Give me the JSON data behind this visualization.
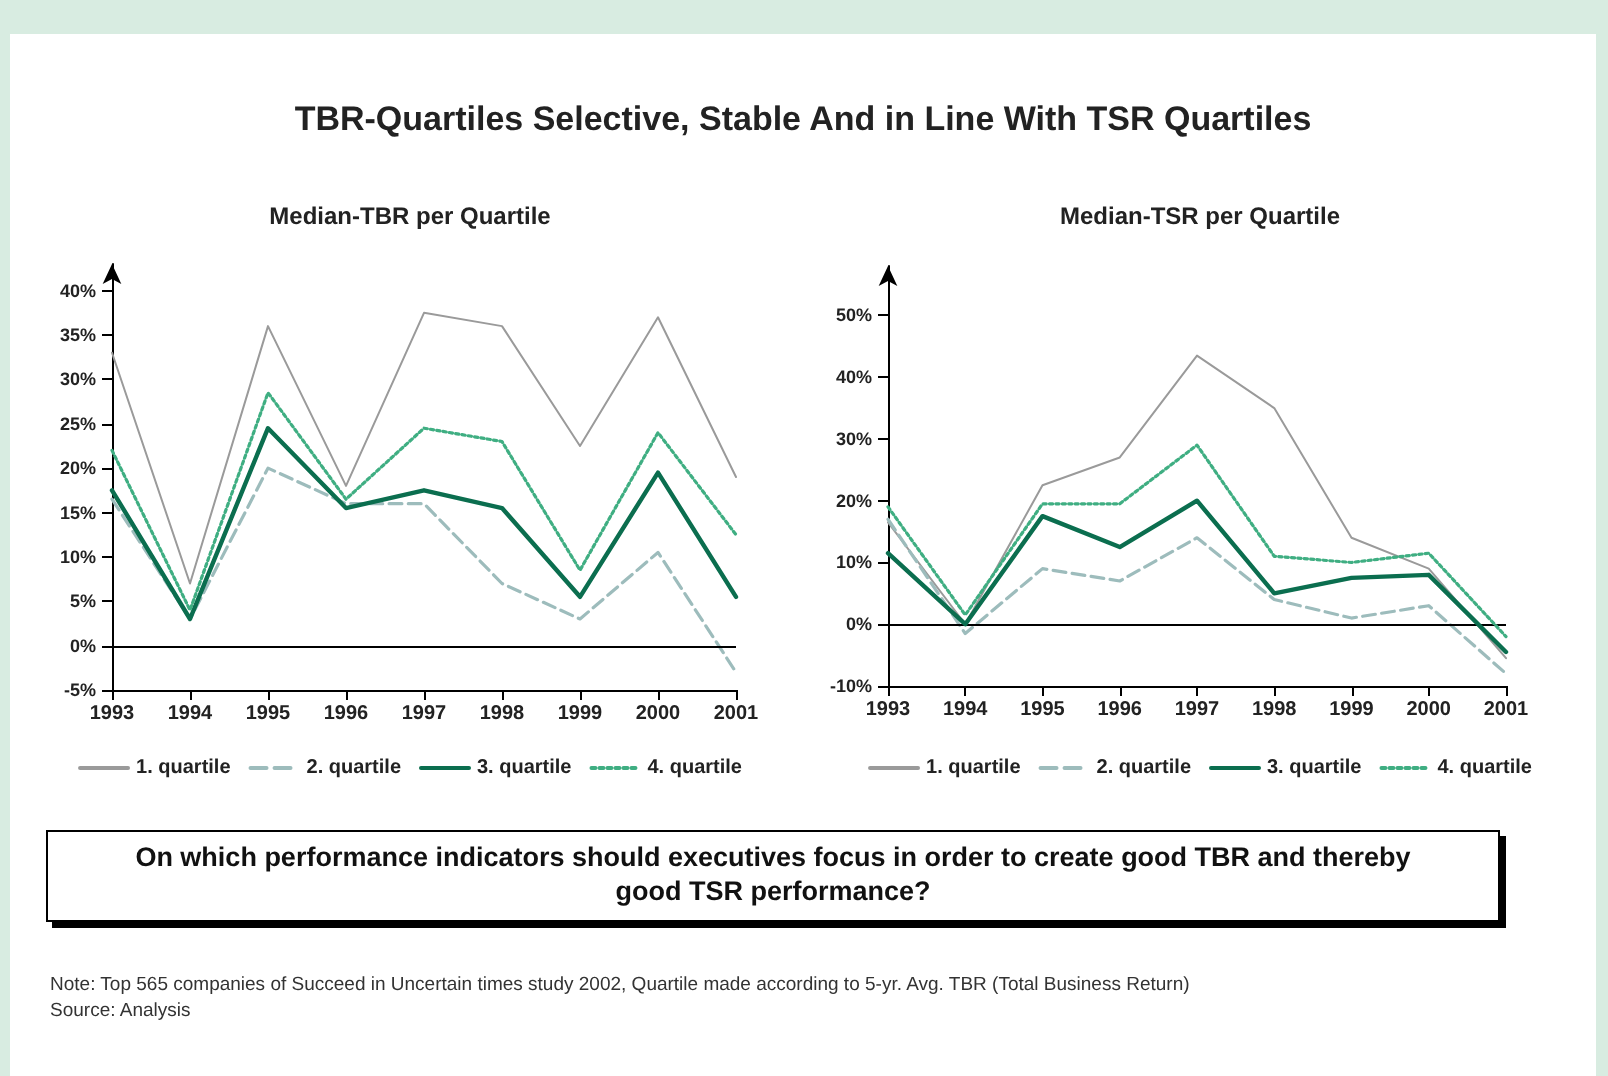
{
  "chart_data": [
    {
      "type": "other",
      "title": "TBR-Quartiles Selective, Stable And in Line With TSR Quartiles"
    },
    {
      "type": "line",
      "title": "Median-TBR per Quartile",
      "categories": [
        "1993",
        "1994",
        "1995",
        "1996",
        "1997",
        "1998",
        "1999",
        "2000",
        "2001"
      ],
      "series": [
        {
          "name": "1. quartile",
          "color": "#9a9a9a",
          "line_style": "solid",
          "values": [
            33,
            7,
            36,
            18,
            37.5,
            36,
            22.5,
            37,
            19
          ]
        },
        {
          "name": "2. quartile",
          "color": "#9dbcbc",
          "line_style": "dashed",
          "values": [
            16.5,
            3,
            20,
            16,
            16,
            7,
            3,
            10.5,
            -3
          ]
        },
        {
          "name": "3. quartile",
          "color": "#0b6e4f",
          "line_style": "solid",
          "values": [
            17.5,
            3,
            24.5,
            15.5,
            17.5,
            15.5,
            5.5,
            19.5,
            5.5
          ]
        },
        {
          "name": "4. quartile",
          "color": "#3fae82",
          "line_style": "dotted",
          "values": [
            22,
            4,
            28.5,
            16.5,
            24.5,
            23,
            8.5,
            24,
            12.5
          ]
        }
      ],
      "ylim": [
        -5,
        43
      ],
      "yticks": [
        {
          "value": -5,
          "label": "-5%"
        },
        {
          "value": 0,
          "label": "0%"
        },
        {
          "value": 5,
          "label": "5%"
        },
        {
          "value": 10,
          "label": "10%"
        },
        {
          "value": 15,
          "label": "15%"
        },
        {
          "value": 20,
          "label": "20%"
        },
        {
          "value": 25,
          "label": "25%"
        },
        {
          "value": 30,
          "label": "30%"
        },
        {
          "value": 35,
          "label": "35%"
        },
        {
          "value": 40,
          "label": "40%"
        }
      ],
      "ref_lines": [
        {
          "axis": "y",
          "value": 0,
          "color": "#000000"
        }
      ],
      "legend": "bottom",
      "marker": "none",
      "grid": false
    },
    {
      "type": "line",
      "title": "Median-TSR per Quartile",
      "categories": [
        "1993",
        "1994",
        "1995",
        "1996",
        "1997",
        "1998",
        "1999",
        "2000",
        "2001"
      ],
      "series": [
        {
          "name": "1. quartile",
          "color": "#9a9a9a",
          "line_style": "solid",
          "values": [
            16.5,
            0,
            22.5,
            27,
            43.5,
            35,
            14,
            9,
            -5.5
          ]
        },
        {
          "name": "2. quartile",
          "color": "#9dbcbc",
          "line_style": "dashed",
          "values": [
            17,
            -1.5,
            9,
            7,
            14,
            4,
            1,
            3,
            -8
          ]
        },
        {
          "name": "3. quartile",
          "color": "#0b6e4f",
          "line_style": "solid",
          "values": [
            11.5,
            0,
            17.5,
            12.5,
            20,
            5,
            7.5,
            8,
            -4.5
          ]
        },
        {
          "name": "4. quartile",
          "color": "#3fae82",
          "line_style": "dotted",
          "values": [
            19,
            1.5,
            19.5,
            19.5,
            29,
            11,
            10,
            11.5,
            -2
          ]
        }
      ],
      "ylim": [
        -10,
        58
      ],
      "yticks": [
        {
          "value": -10,
          "label": "-10%"
        },
        {
          "value": 0,
          "label": "0%"
        },
        {
          "value": 10,
          "label": "10%"
        },
        {
          "value": 20,
          "label": "20%"
        },
        {
          "value": 30,
          "label": "30%"
        },
        {
          "value": 40,
          "label": "40%"
        },
        {
          "value": 50,
          "label": "50%"
        }
      ],
      "ref_lines": [
        {
          "axis": "y",
          "value": 0,
          "color": "#000000"
        }
      ],
      "legend": "bottom",
      "marker": "none",
      "grid": false
    },
    {
      "type": "other",
      "annotations": [
        "On which performance indicators should executives focus in order to create good TBR and thereby good TSR performance?",
        "Note: Top 565 companies of Succeed in Uncertain times study 2002, Quartile made according to 5-yr. Avg. TBR (Total Business Return)",
        "Source: Analysis"
      ]
    }
  ]
}
